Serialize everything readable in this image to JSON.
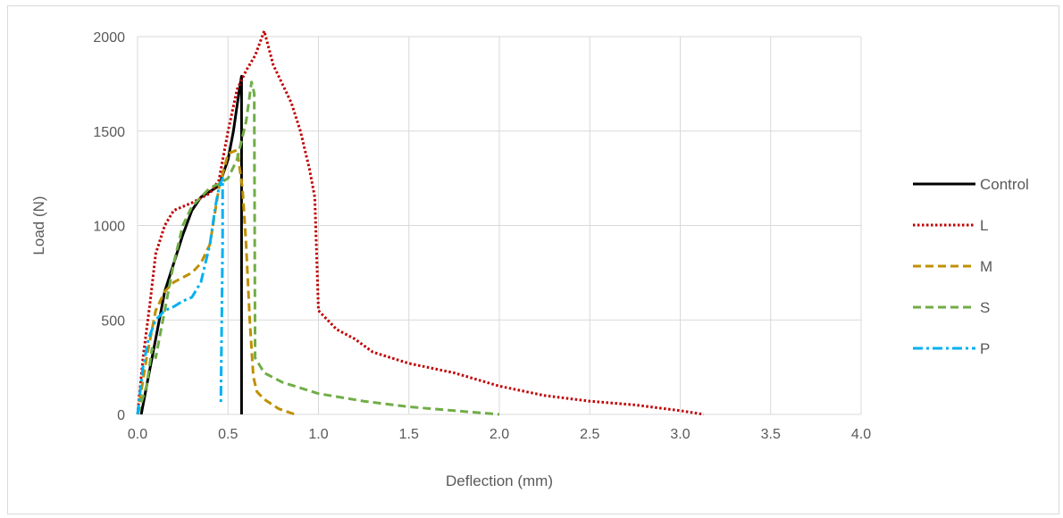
{
  "chart_data": {
    "type": "line",
    "title": "",
    "xlabel": "Deflection (mm)",
    "ylabel": "Load (N)",
    "xlim": [
      0,
      4.0
    ],
    "ylim": [
      0,
      2000
    ],
    "x_ticks": [
      "0.0",
      "0.5",
      "1.0",
      "1.5",
      "2.0",
      "2.5",
      "3.0",
      "3.5",
      "4.0"
    ],
    "y_ticks": [
      "0",
      "500",
      "1000",
      "1500",
      "2000"
    ],
    "grid": true,
    "legend_position": "right",
    "series": [
      {
        "name": "Control",
        "color": "#000000",
        "style": "solid",
        "points": [
          [
            0.02,
            0
          ],
          [
            0.05,
            150
          ],
          [
            0.1,
            400
          ],
          [
            0.15,
            650
          ],
          [
            0.2,
            800
          ],
          [
            0.25,
            950
          ],
          [
            0.3,
            1080
          ],
          [
            0.35,
            1150
          ],
          [
            0.4,
            1180
          ],
          [
            0.45,
            1210
          ],
          [
            0.5,
            1350
          ],
          [
            0.53,
            1500
          ],
          [
            0.56,
            1700
          ],
          [
            0.575,
            1790
          ],
          [
            0.575,
            0
          ]
        ]
      },
      {
        "name": "L",
        "color": "#c00000",
        "style": "dotted",
        "points": [
          [
            0.0,
            0
          ],
          [
            0.03,
            300
          ],
          [
            0.07,
            600
          ],
          [
            0.1,
            850
          ],
          [
            0.15,
            1000
          ],
          [
            0.2,
            1080
          ],
          [
            0.3,
            1120
          ],
          [
            0.4,
            1170
          ],
          [
            0.45,
            1240
          ],
          [
            0.5,
            1500
          ],
          [
            0.55,
            1720
          ],
          [
            0.6,
            1820
          ],
          [
            0.65,
            1900
          ],
          [
            0.7,
            2030
          ],
          [
            0.75,
            1850
          ],
          [
            0.8,
            1750
          ],
          [
            0.85,
            1650
          ],
          [
            0.9,
            1500
          ],
          [
            0.95,
            1300
          ],
          [
            0.98,
            1150
          ],
          [
            1.0,
            550
          ],
          [
            1.1,
            450
          ],
          [
            1.2,
            400
          ],
          [
            1.3,
            330
          ],
          [
            1.5,
            270
          ],
          [
            1.75,
            220
          ],
          [
            2.0,
            150
          ],
          [
            2.25,
            100
          ],
          [
            2.5,
            70
          ],
          [
            2.75,
            50
          ],
          [
            3.0,
            20
          ],
          [
            3.13,
            0
          ]
        ]
      },
      {
        "name": "M",
        "color": "#bf9000",
        "style": "dashed",
        "points": [
          [
            0.0,
            0
          ],
          [
            0.05,
            300
          ],
          [
            0.1,
            550
          ],
          [
            0.15,
            650
          ],
          [
            0.2,
            700
          ],
          [
            0.3,
            750
          ],
          [
            0.35,
            800
          ],
          [
            0.4,
            900
          ],
          [
            0.45,
            1200
          ],
          [
            0.5,
            1380
          ],
          [
            0.55,
            1400
          ],
          [
            0.58,
            1200
          ],
          [
            0.6,
            900
          ],
          [
            0.62,
            500
          ],
          [
            0.64,
            200
          ],
          [
            0.66,
            120
          ],
          [
            0.7,
            80
          ],
          [
            0.78,
            30
          ],
          [
            0.87,
            0
          ]
        ]
      },
      {
        "name": "S",
        "color": "#70ad47",
        "style": "dashed",
        "points": [
          [
            0.0,
            0
          ],
          [
            0.05,
            150
          ],
          [
            0.08,
            350
          ],
          [
            0.1,
            300
          ],
          [
            0.15,
            550
          ],
          [
            0.2,
            800
          ],
          [
            0.25,
            1000
          ],
          [
            0.3,
            1100
          ],
          [
            0.35,
            1150
          ],
          [
            0.4,
            1200
          ],
          [
            0.45,
            1220
          ],
          [
            0.5,
            1250
          ],
          [
            0.55,
            1350
          ],
          [
            0.6,
            1550
          ],
          [
            0.63,
            1760
          ],
          [
            0.645,
            1700
          ],
          [
            0.65,
            300
          ],
          [
            0.7,
            220
          ],
          [
            0.8,
            170
          ],
          [
            1.0,
            110
          ],
          [
            1.25,
            70
          ],
          [
            1.5,
            40
          ],
          [
            1.75,
            20
          ],
          [
            2.0,
            0
          ]
        ]
      },
      {
        "name": "P",
        "color": "#00b0f0",
        "style": "dashdot",
        "points": [
          [
            0.0,
            0
          ],
          [
            0.03,
            250
          ],
          [
            0.06,
            400
          ],
          [
            0.1,
            500
          ],
          [
            0.15,
            550
          ],
          [
            0.2,
            570
          ],
          [
            0.25,
            600
          ],
          [
            0.3,
            620
          ],
          [
            0.35,
            700
          ],
          [
            0.4,
            900
          ],
          [
            0.43,
            1100
          ],
          [
            0.45,
            1200
          ],
          [
            0.47,
            1250
          ],
          [
            0.47,
            900
          ],
          [
            0.46,
            50
          ]
        ]
      }
    ]
  }
}
